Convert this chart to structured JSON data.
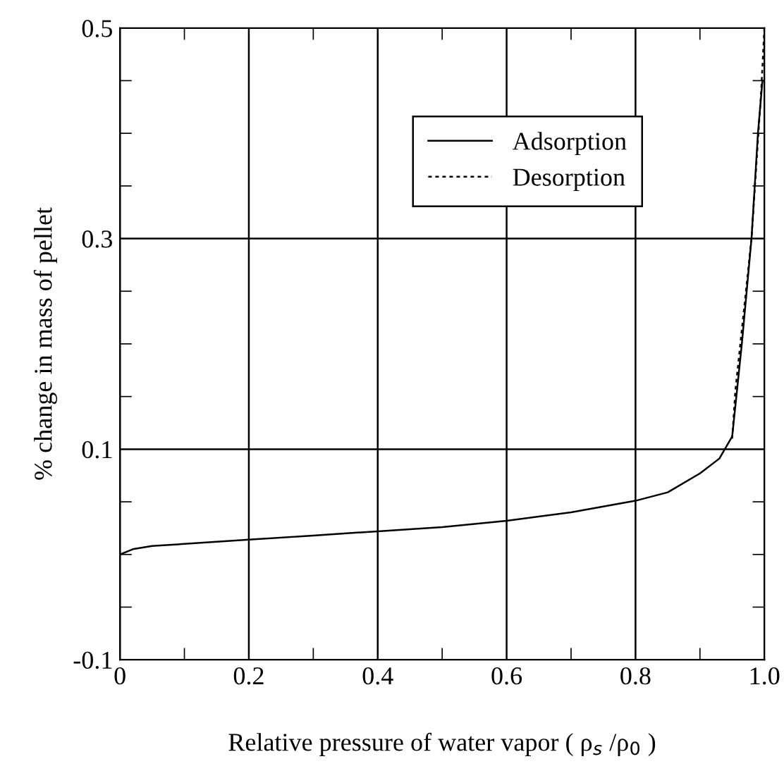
{
  "chart_data": {
    "type": "line",
    "xlabel": "Relative pressure of water vapor ( ρ$_{s}$ /ρ$_{0}$ )",
    "ylabel": "% change in mass of pellet",
    "series": [
      {
        "name": "Adsorption",
        "color": "#000000",
        "line_style": "solid",
        "x": [
          0,
          0.02,
          0.05,
          0.1,
          0.2,
          0.3,
          0.4,
          0.5,
          0.6,
          0.7,
          0.8,
          0.85,
          0.9,
          0.93,
          0.95,
          0.965,
          0.98,
          0.99,
          0.997
        ],
        "values": [
          0.0,
          0.005,
          0.008,
          0.01,
          0.014,
          0.018,
          0.022,
          0.026,
          0.032,
          0.04,
          0.051,
          0.059,
          0.077,
          0.091,
          0.112,
          0.2,
          0.3,
          0.4,
          0.45
        ]
      },
      {
        "name": "Desorption",
        "color": "#000000",
        "line_style": "dashed",
        "x": [
          0.95,
          0.955,
          0.98,
          0.995,
          1.0
        ],
        "values": [
          0.11,
          0.156,
          0.3,
          0.44,
          0.5
        ]
      }
    ],
    "xlim": [
      0,
      1.0
    ],
    "xticks": [
      0,
      0.2,
      0.4,
      0.6,
      0.8,
      {
        "value": 1.0,
        "label": "1.0"
      },
      {
        "value": 0.1,
        "label": null
      },
      {
        "value": 0.3,
        "label": null
      },
      {
        "value": 0.5,
        "label": null
      },
      {
        "value": 0.7,
        "label": null
      },
      {
        "value": 0.9,
        "label": null
      }
    ],
    "ylim": [
      -0.1,
      0.5
    ],
    "yticks": [
      -0.1,
      0.1,
      0.3,
      0.5,
      {
        "value": -0.05,
        "label": null
      },
      {
        "value": 0.0,
        "label": null
      },
      {
        "value": 0.05,
        "label": null
      },
      {
        "value": 0.15,
        "label": null
      },
      {
        "value": 0.2,
        "label": null
      },
      {
        "value": 0.25,
        "label": null
      },
      {
        "value": 0.35,
        "label": null
      },
      {
        "value": 0.4,
        "label": null
      },
      {
        "value": 0.45,
        "label": null
      }
    ],
    "grid": true,
    "legend": "top right",
    "marker": "none"
  }
}
